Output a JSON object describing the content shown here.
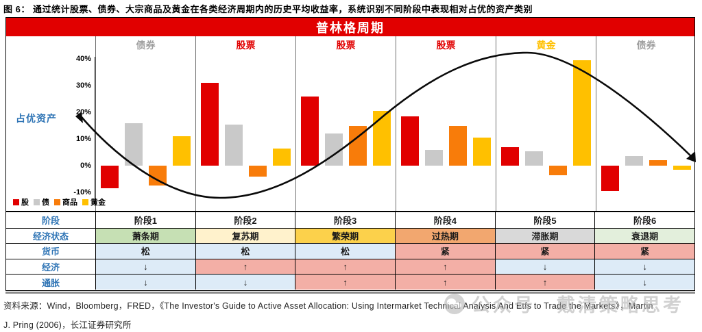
{
  "caption": "图 6： 通过统计股票、债券、大宗商品及黄金在各类经济周期内的历史平均收益率，系统识别不同阶段中表现相对占优的资产类别",
  "banner": {
    "title": "普林格周期",
    "bg_color": "#E10000",
    "text_color": "#FFFFFF"
  },
  "chart_data": {
    "type": "bar",
    "title": "普林格周期",
    "ylabel": "占优资产",
    "ylim": [
      -10,
      40
    ],
    "ytick_labels": [
      "40%",
      "30%",
      "20%",
      "10%",
      "0%",
      "-10%"
    ],
    "ytick_values": [
      40,
      30,
      20,
      10,
      0,
      -10
    ],
    "grid": false,
    "legend_position": "bottom-left",
    "categories": [
      "阶段1",
      "阶段2",
      "阶段3",
      "阶段4",
      "阶段5",
      "阶段6"
    ],
    "stage_top_labels": [
      {
        "text": "债券",
        "color": "#9E9E9E"
      },
      {
        "text": "股票",
        "color": "#E10000"
      },
      {
        "text": "股票",
        "color": "#E10000"
      },
      {
        "text": "股票",
        "color": "#E10000"
      },
      {
        "text": "黄金",
        "color": "#FFC000"
      },
      {
        "text": "债券",
        "color": "#9E9E9E"
      }
    ],
    "series": [
      {
        "name": "股",
        "color": "#E10000",
        "values": [
          -8.5,
          31,
          26,
          18.5,
          7,
          -9.5
        ]
      },
      {
        "name": "债",
        "color": "#C9C9C9",
        "values": [
          16,
          15.5,
          12,
          6,
          5.5,
          3.5
        ]
      },
      {
        "name": "商品",
        "color": "#F87C0A",
        "values": [
          -7.5,
          -4,
          15,
          15,
          -3.5,
          2
        ]
      },
      {
        "name": "黄金",
        "color": "#FFC000",
        "values": [
          11,
          6.5,
          20.5,
          10.5,
          39.5,
          -1.5
        ]
      }
    ],
    "overlay_curve": "black business-cycle sine curve: starts ~16% falling to trough ~-12% in 阶段2, rises through 阶段3-4, peaks ~42% in 阶段5, falls to ~3% at right edge"
  },
  "table": {
    "rows": [
      {
        "header": "阶段",
        "cells": [
          {
            "text": "阶段1",
            "bg": "#FFFFFF"
          },
          {
            "text": "阶段2",
            "bg": "#FFFFFF"
          },
          {
            "text": "阶段3",
            "bg": "#FFFFFF"
          },
          {
            "text": "阶段4",
            "bg": "#FFFFFF"
          },
          {
            "text": "阶段5",
            "bg": "#FFFFFF"
          },
          {
            "text": "阶段6",
            "bg": "#FFFFFF"
          }
        ]
      },
      {
        "header": "经济状态",
        "cells": [
          {
            "text": "萧条期",
            "bg": "#C6E0B4"
          },
          {
            "text": "复苏期",
            "bg": "#FFF2CC"
          },
          {
            "text": "繁荣期",
            "bg": "#FCD14B"
          },
          {
            "text": "过热期",
            "bg": "#F2A76F"
          },
          {
            "text": "滞胀期",
            "bg": "#D9D9D9"
          },
          {
            "text": "衰退期",
            "bg": "#E3EFDC"
          }
        ]
      },
      {
        "header": "货币",
        "cells": [
          {
            "text": "松",
            "bg": "#DDEBF7"
          },
          {
            "text": "松",
            "bg": "#DDEBF7"
          },
          {
            "text": "松",
            "bg": "#DDEBF7"
          },
          {
            "text": "紧",
            "bg": "#F3AFA6"
          },
          {
            "text": "紧",
            "bg": "#F3AFA6"
          },
          {
            "text": "紧",
            "bg": "#F3AFA6"
          }
        ]
      },
      {
        "header": "经济",
        "cells": [
          {
            "text": "↓",
            "bg": "#DDEBF7"
          },
          {
            "text": "↑",
            "bg": "#F3AFA6"
          },
          {
            "text": "↑",
            "bg": "#F3AFA6"
          },
          {
            "text": "↑",
            "bg": "#F3AFA6"
          },
          {
            "text": "↓",
            "bg": "#DDEBF7"
          },
          {
            "text": "↓",
            "bg": "#DDEBF7"
          }
        ]
      },
      {
        "header": "通胀",
        "cells": [
          {
            "text": "↓",
            "bg": "#DDEBF7"
          },
          {
            "text": "↓",
            "bg": "#DDEBF7"
          },
          {
            "text": "↑",
            "bg": "#F3AFA6"
          },
          {
            "text": "↑",
            "bg": "#F3AFA6"
          },
          {
            "text": "↑",
            "bg": "#F3AFA6"
          },
          {
            "text": "↓",
            "bg": "#DDEBF7"
          }
        ]
      }
    ]
  },
  "source": {
    "line1": "资料来源：Wind，Bloomberg，FRED，《The Investor's Guide to Active Asset Allocation: Using Intermarket Technical Analysis And Etfs to Trade the Markets》，Martin",
    "line2": "J. Pring (2006)，长江证券研究所"
  },
  "watermark": {
    "text": "公众号　戴清策略思考"
  }
}
